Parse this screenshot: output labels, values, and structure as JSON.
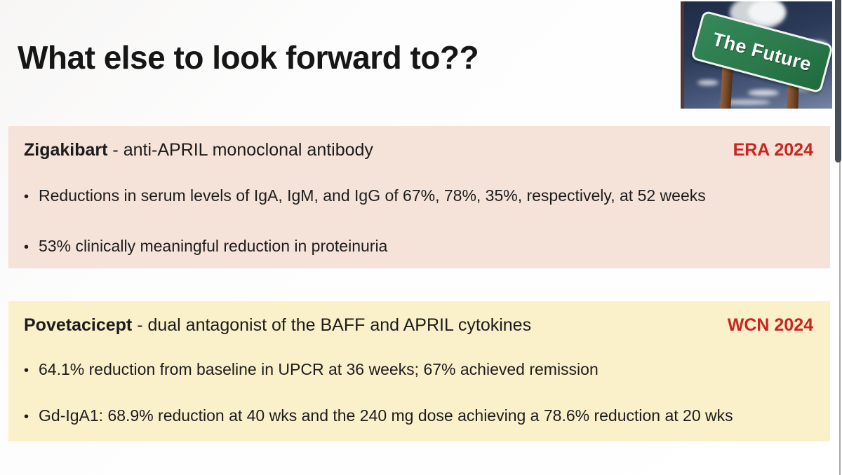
{
  "title": "What else to look forward to??",
  "bullet_glyph": "•",
  "photo": {
    "sign_text": "The Future"
  },
  "panels": [
    {
      "drug": "Zigakibart",
      "separator": " - ",
      "description": "anti-APRIL monoclonal antibody",
      "badge": "ERA 2024",
      "bullets": [
        "Reductions in serum levels of IgA, IgM, and IgG of 67%, 78%, 35%, respectively, at 52 weeks",
        "53% clinically meaningful reduction in proteinuria"
      ],
      "colors": {
        "background": "#f5e2d8",
        "badge": "#cb2520"
      }
    },
    {
      "drug": "Povetacicept",
      "separator": " - ",
      "description": "dual antagonist of the BAFF and APRIL cytokines",
      "badge": "WCN 2024",
      "bullets": [
        "64.1% reduction from baseline in UPCR at 36 weeks; 67% achieved remission",
        "Gd-IgA1: 68.9% reduction at 40 wks and the 240 mg dose achieving a 78.6% reduction at 20 wks"
      ],
      "colors": {
        "background": "#faf0c9",
        "badge": "#cb2520"
      }
    }
  ]
}
